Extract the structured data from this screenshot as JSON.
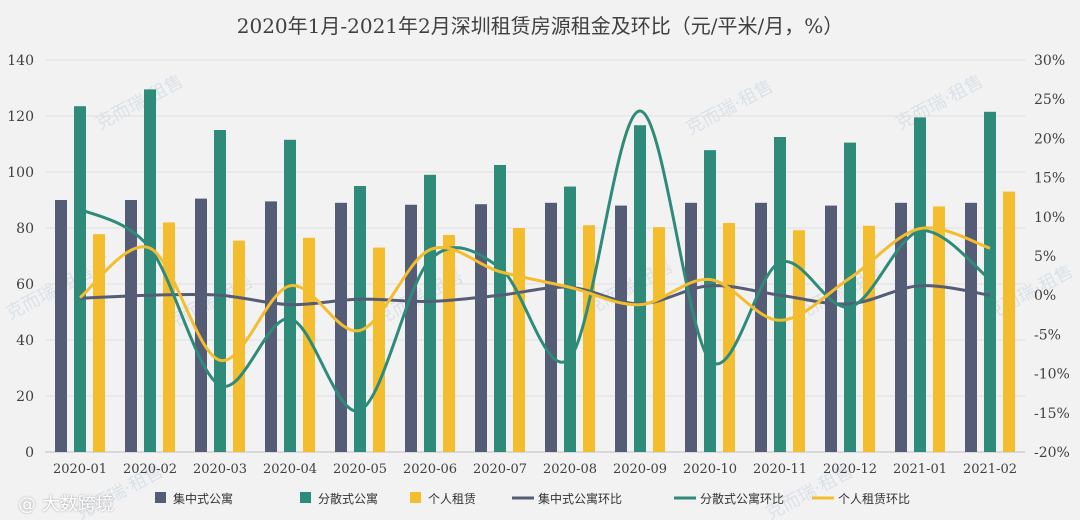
{
  "chart_data": {
    "type": "bar",
    "title": "2020年1月-2021年2月深圳租赁房源租金及环比（元/平米/月，%）",
    "categories": [
      "2020-01",
      "2020-02",
      "2020-03",
      "2020-04",
      "2020-05",
      "2020-06",
      "2020-07",
      "2020-08",
      "2020-09",
      "2020-10",
      "2020-11",
      "2020-12",
      "2021-01",
      "2021-02"
    ],
    "ylim": [
      0,
      140
    ],
    "y_ticks": [
      "0",
      "20",
      "40",
      "60",
      "80",
      "100",
      "120",
      "140"
    ],
    "y2lim": [
      -20,
      30
    ],
    "y2_ticks": [
      "-20%",
      "-15%",
      "-10%",
      "-5%",
      "0%",
      "5%",
      "10%",
      "15%",
      "20%",
      "25%",
      "30%"
    ],
    "series": [
      {
        "name": "集中式公寓",
        "kind": "bar",
        "color": "#545d75",
        "values": [
          90,
          90,
          90.5,
          89.5,
          89,
          88.3,
          88.5,
          89,
          88,
          89,
          89,
          88,
          89,
          89
        ]
      },
      {
        "name": "分散式公寓",
        "kind": "bar",
        "color": "#2e8b7a",
        "values": [
          123.5,
          129.5,
          115,
          111.5,
          95,
          99,
          102.5,
          94.8,
          116.7,
          107.8,
          112.5,
          110.5,
          119.5,
          121.5
        ]
      },
      {
        "name": "个人租赁",
        "kind": "bar",
        "color": "#f4bd2d",
        "values": [
          77.8,
          82,
          75.5,
          76.5,
          73,
          77.5,
          80,
          81,
          80.3,
          81.8,
          79.2,
          80.8,
          87.7,
          93
        ]
      },
      {
        "name": "集中式公寓环比",
        "kind": "line",
        "color": "#545d75",
        "values": [
          -0.4,
          0,
          0,
          -1.2,
          -0.5,
          -0.8,
          0,
          1,
          -1.1,
          1.2,
          0,
          -1.1,
          1.2,
          0
        ]
      },
      {
        "name": "分散式公寓环比",
        "kind": "line",
        "color": "#2e8b7a",
        "values": [
          11,
          6,
          -11.5,
          -3,
          -14.7,
          4.5,
          3.5,
          -8,
          23.5,
          -8.3,
          4.2,
          -1.5,
          8.2,
          2
        ]
      },
      {
        "name": "个人租赁环比",
        "kind": "line",
        "color": "#f4bd2d",
        "values": [
          -0.3,
          6,
          -8.3,
          1.2,
          -4.5,
          5.8,
          3,
          1,
          -1.2,
          2,
          -3.2,
          2.2,
          8.5,
          6
        ]
      }
    ],
    "watermark": "克而瑞·租售"
  },
  "brand": "@ 大数跨境"
}
